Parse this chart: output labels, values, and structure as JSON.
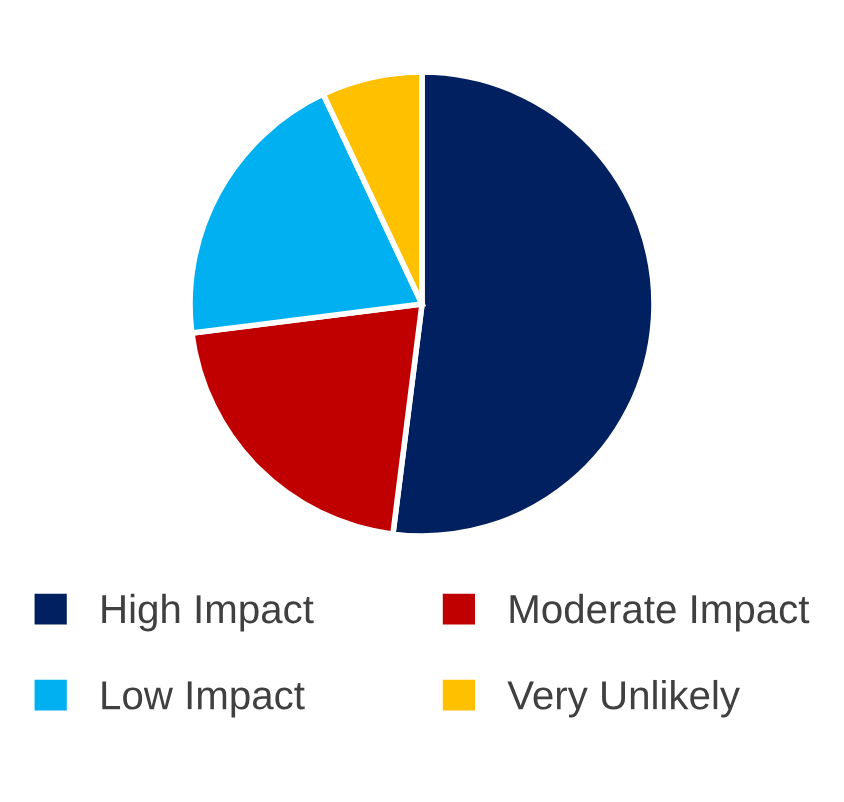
{
  "chart_data": {
    "type": "pie",
    "categories": [
      "High Impact",
      "Moderate Impact",
      "Low Impact",
      "Very Unlikely"
    ],
    "values": [
      52,
      21,
      20,
      7
    ],
    "colors": [
      "#002060",
      "#c00000",
      "#00b0f0",
      "#ffc000"
    ],
    "legend": "bottom"
  }
}
